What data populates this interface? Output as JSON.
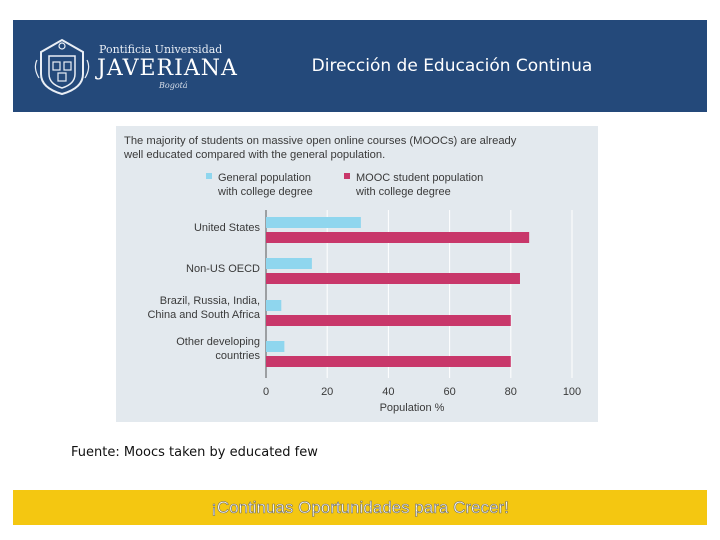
{
  "header": {
    "university_top": "Pontificia Universidad",
    "university_name": "JAVERIANA",
    "university_city": "Bogotá",
    "title": "Dirección de Educación Continua",
    "background": "#24497a"
  },
  "chart_data": {
    "type": "bar",
    "orientation": "horizontal",
    "title": "The majority of students on massive open online courses (MOOCs) are already well educated compared with the general population.",
    "title_lines": [
      "The majority of students on massive open online courses (MOOCs) are already",
      "well educated compared with the general population."
    ],
    "categories": [
      [
        "United States"
      ],
      [
        "Non-US OECD"
      ],
      [
        "Brazil, Russia, India,",
        "China and South Africa"
      ],
      [
        "Other developing",
        "countries"
      ]
    ],
    "series": [
      {
        "name": "General population with college degree",
        "legend_lines": [
          "General population",
          "with college degree"
        ],
        "color": "#8fd6ee",
        "values": [
          31,
          15,
          5,
          6
        ]
      },
      {
        "name": "MOOC student population with college degree",
        "legend_lines": [
          "MOOC student population",
          "with college degree"
        ],
        "color": "#c8376a",
        "values": [
          86,
          83,
          80,
          80
        ]
      }
    ],
    "xlabel": "Population %",
    "xlim": [
      0,
      100
    ],
    "xticks": [
      0,
      20,
      40,
      60,
      80,
      100
    ],
    "grid": true,
    "legend_position": "top"
  },
  "source": "Fuente: Moocs taken by educated few",
  "footer": {
    "slogan": "¡Continuas Oportunidades para Crecer!",
    "background": "#f4c711"
  }
}
